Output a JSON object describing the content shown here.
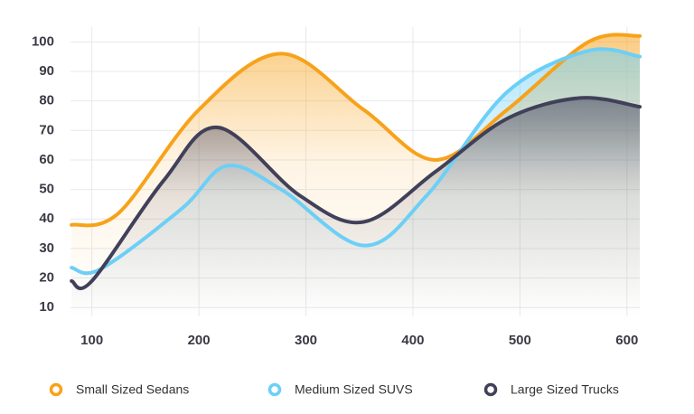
{
  "chart_data": {
    "type": "line",
    "xlim": [
      80,
      612
    ],
    "ylim": [
      7,
      105
    ],
    "xticks": [
      100,
      200,
      300,
      400,
      500,
      600
    ],
    "yticks": [
      10,
      20,
      30,
      40,
      50,
      60,
      70,
      80,
      90,
      100
    ],
    "grid": true,
    "legend": "bottom",
    "series": [
      {
        "name": "Small Sized Sedans",
        "color": "#f7a21b",
        "x": [
          81,
          125,
          200,
          277,
          354,
          421,
          488,
          564,
          612
        ],
        "values": [
          38,
          42,
          77,
          96,
          77,
          60,
          77,
          100,
          102
        ]
      },
      {
        "name": "Medium Sized SUVS",
        "color": "#6ccff6",
        "x": [
          81,
          108,
          184,
          226,
          277,
          354,
          413,
          488,
          564,
          612
        ],
        "values": [
          23.5,
          23,
          43.5,
          58,
          50,
          31,
          48,
          83,
          97,
          95
        ]
      },
      {
        "name": "Large Sized Trucks",
        "color": "#41405a",
        "x": [
          81,
          100,
          167,
          218,
          294,
          354,
          421,
          488,
          556,
          612
        ],
        "values": [
          19,
          19,
          53,
          71,
          48,
          39,
          56,
          74,
          81,
          78
        ]
      }
    ]
  }
}
